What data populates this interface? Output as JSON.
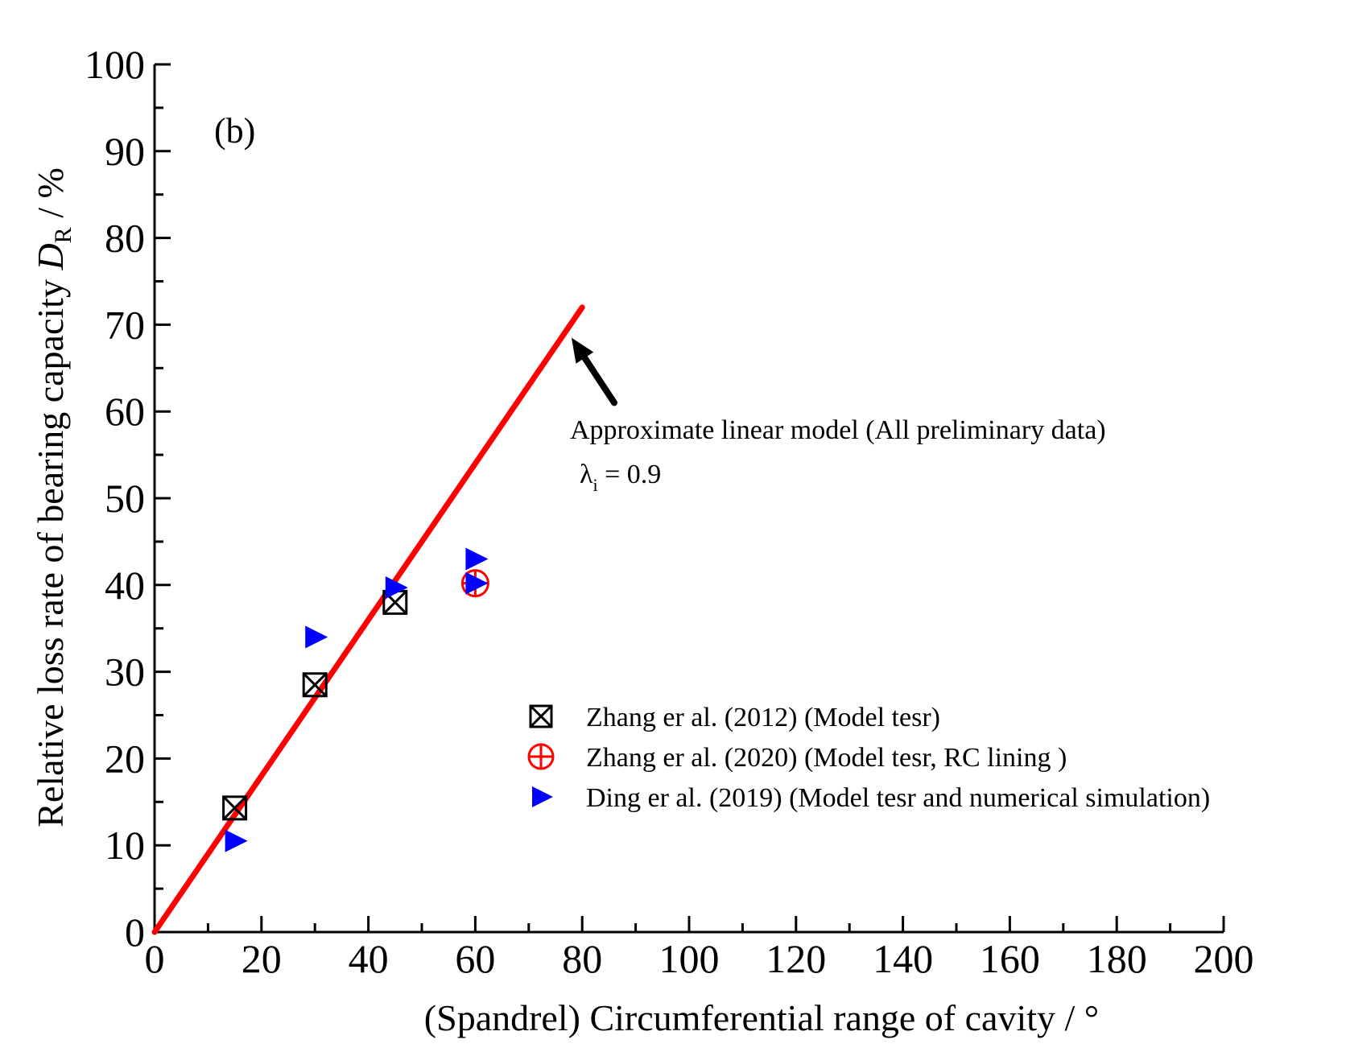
{
  "chart_data": {
    "type": "scatter",
    "panel_label": "(b)",
    "xlabel": "(Spandrel) Circumferential range of  cavity / °",
    "ylabel": {
      "prefix": "Relative loss rate of bearing capacity ",
      "symbol": "D",
      "subscript": "R",
      "suffix": " / %"
    },
    "xlim": [
      0,
      200
    ],
    "ylim": [
      0,
      100
    ],
    "x_ticks": [
      0,
      20,
      40,
      60,
      80,
      100,
      120,
      140,
      160,
      180,
      200
    ],
    "y_ticks": [
      0,
      10,
      20,
      30,
      40,
      50,
      60,
      70,
      80,
      90,
      100
    ],
    "x_tick_labels": [
      "0",
      "20",
      "40",
      "60",
      "80",
      "100",
      "120",
      "140",
      "160",
      "180",
      "200"
    ],
    "y_tick_labels": [
      "0",
      "10",
      "20",
      "30",
      "40",
      "50",
      "60",
      "70",
      "80",
      "90",
      "100"
    ],
    "series": [
      {
        "name": "Zhang er al. (2012) (Model tesr)",
        "marker": "square-x",
        "color": "#000000",
        "x": [
          15,
          30,
          45
        ],
        "y": [
          14.3,
          28.5,
          38.0
        ]
      },
      {
        "name": "Zhang er al. (2020) (Model tesr, RC lining )",
        "marker": "circle-plus",
        "color": "#ff0000",
        "x": [
          60
        ],
        "y": [
          40.2
        ]
      },
      {
        "name": "Ding er al. (2019) (Model tesr and numerical simulation)",
        "marker": "triangle-right",
        "color": "#0000ff",
        "x": [
          15,
          30,
          45,
          60,
          60
        ],
        "y": [
          10.5,
          34.0,
          39.7,
          43.0,
          40.2
        ]
      }
    ],
    "fit_line": {
      "name": "Approximate linear model (All preliminary data)",
      "color": "#ff0000",
      "x": [
        0,
        80
      ],
      "y": [
        0,
        72
      ]
    },
    "annotation": {
      "text": "Approximate linear model (All preliminary data)",
      "lambda_symbol": "λ",
      "lambda_subscript": "i",
      "lambda_value": " = 0.9",
      "arrow_tip": [
        78,
        68.5
      ],
      "arrow_tail": [
        86,
        61
      ]
    }
  }
}
